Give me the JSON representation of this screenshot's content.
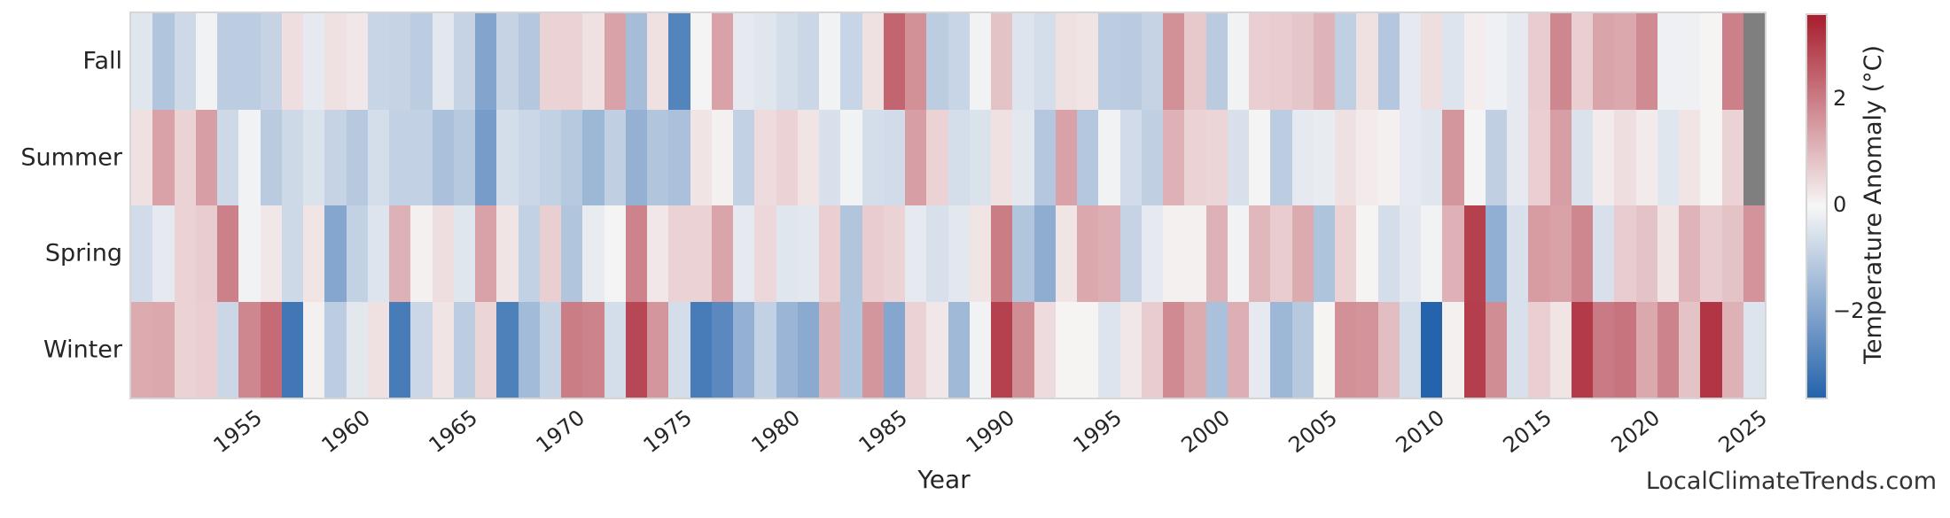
{
  "page": {
    "background": "#ffffff",
    "text_color": "#262626"
  },
  "watermark": {
    "text": "LocalClimateTrends.com"
  },
  "chart_data": {
    "type": "heatmap",
    "title": "",
    "xlabel": "Year",
    "ylabel": "",
    "rows": [
      "Fall",
      "Summer",
      "Spring",
      "Winter"
    ],
    "x_start": 1950,
    "x_end": 2025,
    "x_tick_labels": [
      "1955",
      "1960",
      "1965",
      "1970",
      "1975",
      "1980",
      "1985",
      "1990",
      "1995",
      "2000",
      "2005",
      "2010",
      "2015",
      "2020",
      "2025"
    ],
    "x_tick_years": [
      1955,
      1960,
      1965,
      1970,
      1975,
      1980,
      1985,
      1990,
      1995,
      2000,
      2005,
      2010,
      2015,
      2020,
      2025
    ],
    "legend_position": "right-colorbar",
    "grid": false,
    "series": [
      {
        "name": "Fall",
        "values": [
          -0.4,
          -1.2,
          -0.7,
          -0.1,
          -1.0,
          -1.0,
          -0.85,
          0.4,
          -0.3,
          0.35,
          0.25,
          -0.8,
          -0.85,
          -1.0,
          -0.35,
          -0.85,
          -2.0,
          -0.85,
          -1.15,
          0.6,
          0.6,
          0.35,
          1.4,
          -1.4,
          0.35,
          -2.8,
          -0.05,
          1.4,
          -0.3,
          -0.4,
          -0.6,
          -0.75,
          -0.1,
          -0.8,
          0.35,
          2.4,
          1.7,
          -1.0,
          -0.8,
          -0.1,
          0.85,
          -0.45,
          -0.6,
          0.35,
          0.3,
          -1.0,
          -1.05,
          -0.85,
          1.7,
          0.75,
          -1.05,
          -0.1,
          0.65,
          0.7,
          0.8,
          1.1,
          -0.95,
          0.35,
          -1.15,
          -0.3,
          0.4,
          -0.45,
          0.15,
          -0.15,
          -0.3,
          0.7,
          1.85,
          0.65,
          1.35,
          1.3,
          1.8,
          -0.15,
          -0.15,
          0.05,
          1.95,
          null
        ]
      },
      {
        "name": "Summer",
        "values": [
          0.35,
          1.4,
          0.6,
          1.45,
          -0.7,
          -0.1,
          -1.05,
          -0.7,
          -0.5,
          -0.85,
          -1.1,
          -0.6,
          -0.9,
          -0.9,
          -1.3,
          -1.1,
          -2.2,
          -0.6,
          -0.75,
          -0.9,
          -1.1,
          -1.55,
          -0.95,
          -1.7,
          -1.2,
          -1.3,
          0.3,
          0.1,
          -0.9,
          0.45,
          0.6,
          0.3,
          -0.55,
          -0.1,
          -0.6,
          -0.65,
          1.45,
          0.6,
          -0.6,
          -0.5,
          0.35,
          -0.35,
          -1.15,
          1.4,
          -1.15,
          -0.1,
          -0.65,
          -0.95,
          1.15,
          0.6,
          0.55,
          -0.55,
          -0.05,
          -1.0,
          -0.3,
          -0.25,
          0.35,
          0.2,
          0.1,
          -0.3,
          -0.4,
          1.6,
          -0.05,
          -0.95,
          -0.3,
          0.65,
          1.45,
          -0.5,
          0.2,
          0.4,
          0.2,
          -0.4,
          0.3,
          0.05,
          0.6,
          null
        ]
      },
      {
        "name": "Spring",
        "values": [
          -0.65,
          -0.3,
          0.6,
          0.7,
          1.95,
          -0.1,
          0.25,
          -0.7,
          0.3,
          -1.95,
          -0.9,
          -0.45,
          1.15,
          0.1,
          0.4,
          -0.4,
          1.4,
          0.3,
          -0.9,
          0.65,
          -1.2,
          -0.25,
          -0.05,
          1.9,
          0.25,
          0.6,
          0.6,
          1.35,
          -0.3,
          0.5,
          -0.4,
          -0.35,
          0.65,
          -1.2,
          0.7,
          0.6,
          -0.3,
          -0.55,
          -0.35,
          0.3,
          2.0,
          -1.2,
          -1.8,
          0.3,
          1.3,
          1.2,
          -0.85,
          -0.3,
          0.1,
          0.1,
          1.15,
          -0.1,
          1.05,
          0.7,
          1.25,
          -1.25,
          0.6,
          0.05,
          -0.6,
          -0.35,
          -0.1,
          1.15,
          3.0,
          -1.75,
          -0.55,
          1.5,
          1.4,
          1.85,
          -0.55,
          0.7,
          0.85,
          0.3,
          1.1,
          0.7,
          0.85,
          1.65
        ]
      },
      {
        "name": "Winter",
        "values": [
          1.25,
          1.3,
          0.6,
          0.65,
          -0.75,
          1.85,
          2.3,
          -3.1,
          0.1,
          -1.0,
          -0.35,
          0.35,
          -3.0,
          -0.75,
          0.3,
          -1.0,
          0.55,
          -2.9,
          -1.45,
          -0.85,
          2.0,
          1.9,
          -0.6,
          2.9,
          1.6,
          -0.6,
          -3.0,
          -2.7,
          -1.7,
          -0.9,
          -1.6,
          -1.85,
          1.1,
          -1.2,
          1.6,
          -1.95,
          0.6,
          0.25,
          -1.5,
          -0.1,
          3.0,
          1.75,
          0.45,
          0.05,
          0.05,
          -0.45,
          0.25,
          0.7,
          1.8,
          1.25,
          -1.3,
          1.2,
          -0.3,
          -1.55,
          -1.1,
          0.05,
          1.7,
          1.65,
          0.95,
          -0.6,
          -3.6,
          0.1,
          3.05,
          1.75,
          -0.55,
          0.65,
          0.3,
          3.1,
          2.05,
          2.15,
          1.3,
          1.9,
          0.85,
          3.2,
          1.15,
          -0.45
        ]
      }
    ],
    "colorbar": {
      "label": "Temperature Anomaly (°C)",
      "ticks": [
        {
          "label": "2",
          "value": 2
        },
        {
          "label": "0",
          "value": 0
        },
        {
          "label": "−2",
          "value": -2
        }
      ],
      "vmin": -3.6,
      "vmax": 3.6,
      "color_positive": "#a81d2d",
      "color_negative": "#2563ac",
      "color_mid": "#f7f6f6",
      "color_missing": "#7f7f7f"
    }
  }
}
